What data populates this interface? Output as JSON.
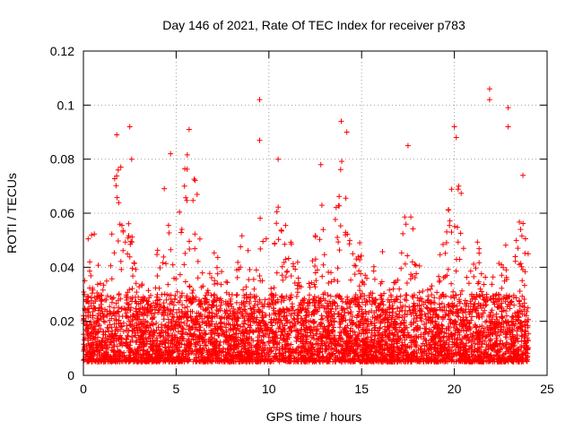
{
  "chart_data": {
    "type": "scatter",
    "title": "Day 146 of 2021, Rate Of TEC Index for receiver p783",
    "xlabel": "GPS time / hours",
    "ylabel": "ROTI / TECUs",
    "xlim": [
      0,
      25
    ],
    "ylim": [
      0,
      0.12
    ],
    "x_ticks": [
      0,
      5,
      10,
      15,
      20,
      25
    ],
    "x_tick_labels": [
      "0",
      "5",
      "10",
      "15",
      "20",
      "25"
    ],
    "y_ticks": [
      0,
      0.02,
      0.04,
      0.06,
      0.08,
      0.1,
      0.12
    ],
    "y_tick_labels": [
      "0",
      "0.02",
      "0.04",
      "0.06",
      "0.08",
      "0.1",
      "0.12"
    ],
    "grid": true,
    "marker": "+",
    "color": "#ff0000",
    "data_range_hours": [
      0,
      24
    ],
    "typical_band": [
      0.005,
      0.03
    ],
    "peak_points": [
      {
        "x": 1.8,
        "y": 0.089
      },
      {
        "x": 2.5,
        "y": 0.092
      },
      {
        "x": 2.6,
        "y": 0.08
      },
      {
        "x": 4.7,
        "y": 0.082
      },
      {
        "x": 5.7,
        "y": 0.091
      },
      {
        "x": 9.5,
        "y": 0.102
      },
      {
        "x": 9.5,
        "y": 0.087
      },
      {
        "x": 10.5,
        "y": 0.08
      },
      {
        "x": 12.8,
        "y": 0.078
      },
      {
        "x": 13.9,
        "y": 0.094
      },
      {
        "x": 14.2,
        "y": 0.09
      },
      {
        "x": 17.5,
        "y": 0.085
      },
      {
        "x": 20.0,
        "y": 0.092
      },
      {
        "x": 20.1,
        "y": 0.088
      },
      {
        "x": 21.9,
        "y": 0.106
      },
      {
        "x": 21.9,
        "y": 0.102
      },
      {
        "x": 22.9,
        "y": 0.099
      },
      {
        "x": 22.9,
        "y": 0.092
      },
      {
        "x": 23.7,
        "y": 0.074
      }
    ]
  }
}
